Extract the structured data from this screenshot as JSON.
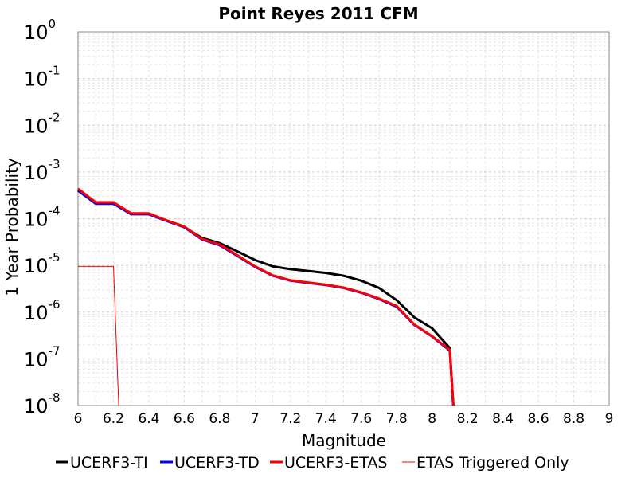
{
  "chart_data": {
    "type": "line",
    "title": "Point Reyes 2011 CFM",
    "xlabel": "Magnitude",
    "ylabel": "1 Year Probability",
    "xlim": [
      6,
      9
    ],
    "ylim": [
      1e-08,
      1
    ],
    "yscale": "log",
    "grid": true,
    "legend_position": "bottom",
    "x_ticks": [
      "6",
      "6.2",
      "6.4",
      "6.6",
      "6.8",
      "7",
      "7.2",
      "7.4",
      "7.6",
      "7.8",
      "8",
      "8.2",
      "8.4",
      "8.6",
      "8.8",
      "9"
    ],
    "y_ticks": [
      {
        "base": "10",
        "exp": "0"
      },
      {
        "base": "10",
        "exp": "-1"
      },
      {
        "base": "10",
        "exp": "-2"
      },
      {
        "base": "10",
        "exp": "-3"
      },
      {
        "base": "10",
        "exp": "-4"
      },
      {
        "base": "10",
        "exp": "-5"
      },
      {
        "base": "10",
        "exp": "-6"
      },
      {
        "base": "10",
        "exp": "-7"
      },
      {
        "base": "10",
        "exp": "-8"
      }
    ],
    "series": [
      {
        "name": "UCERF3-TI",
        "color": "#000000",
        "width": 3,
        "x": [
          6.0,
          6.1,
          6.2,
          6.3,
          6.4,
          6.5,
          6.6,
          6.7,
          6.8,
          6.9,
          7.0,
          7.1,
          7.2,
          7.3,
          7.4,
          7.5,
          7.6,
          7.7,
          7.8,
          7.9,
          8.0,
          8.1,
          8.12
        ],
        "y": [
          0.0004,
          0.00021,
          0.00021,
          0.000125,
          0.000125,
          9e-05,
          6.6e-05,
          3.9e-05,
          3e-05,
          2e-05,
          1.3e-05,
          9.5e-06,
          8.3e-06,
          7.6e-06,
          6.9e-06,
          6e-06,
          4.7e-06,
          3.3e-06,
          1.8e-06,
          7.7e-07,
          4.5e-07,
          1.7e-07,
          1e-08
        ]
      },
      {
        "name": "UCERF3-TD",
        "color": "#0000ff",
        "width": 3,
        "x": [
          6.0,
          6.1,
          6.2,
          6.3,
          6.4,
          6.5,
          6.6,
          6.7,
          6.8,
          6.9,
          7.0,
          7.1,
          7.2,
          7.3,
          7.4,
          7.5,
          7.6,
          7.7,
          7.8,
          7.9,
          8.0,
          8.1,
          8.12
        ],
        "y": [
          0.00041,
          0.00021,
          0.00021,
          0.000125,
          0.000125,
          9e-05,
          6.6e-05,
          3.6e-05,
          2.7e-05,
          1.6e-05,
          9.3e-06,
          6e-06,
          4.7e-06,
          4.2e-06,
          3.8e-06,
          3.3e-06,
          2.6e-06,
          1.9e-06,
          1.3e-06,
          5.3e-07,
          3e-07,
          1.5e-07,
          1e-08
        ]
      },
      {
        "name": "UCERF3-ETAS",
        "color": "#ff0000",
        "width": 3,
        "x": [
          6.0,
          6.1,
          6.2,
          6.3,
          6.4,
          6.5,
          6.6,
          6.7,
          6.8,
          6.9,
          7.0,
          7.1,
          7.2,
          7.3,
          7.4,
          7.5,
          7.6,
          7.7,
          7.8,
          7.9,
          8.0,
          8.1,
          8.12
        ],
        "y": [
          0.00044,
          0.000225,
          0.000225,
          0.00013,
          0.00013,
          9.2e-05,
          6.8e-05,
          3.7e-05,
          2.8e-05,
          1.65e-05,
          9.5e-06,
          6.1e-06,
          4.8e-06,
          4.3e-06,
          3.85e-06,
          3.35e-06,
          2.65e-06,
          1.95e-06,
          1.35e-06,
          5.4e-07,
          3.05e-07,
          1.55e-07,
          1e-08
        ]
      },
      {
        "name": "ETAS Triggered Only",
        "color": "#ff0000",
        "width": 1,
        "x": [
          6.0,
          6.2,
          6.23
        ],
        "y": [
          9.5e-06,
          9.5e-06,
          1e-08
        ]
      }
    ]
  }
}
